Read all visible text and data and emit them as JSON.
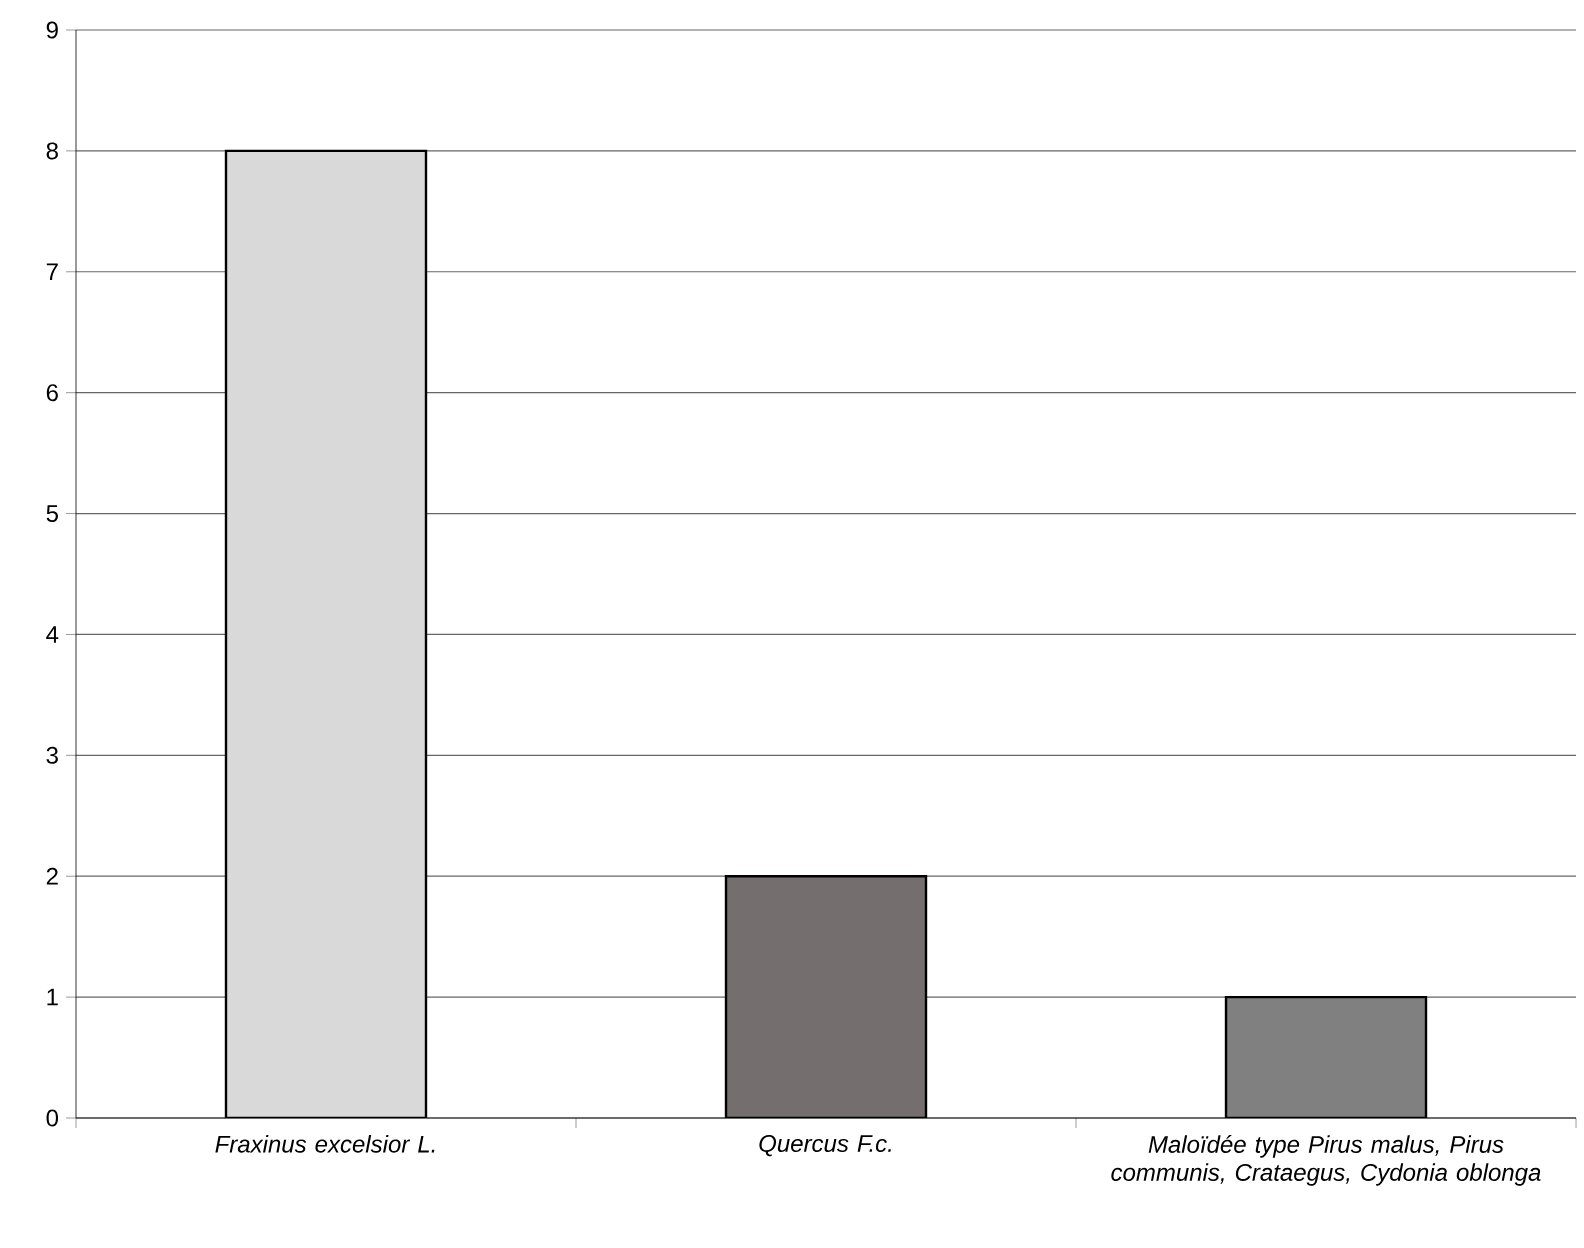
{
  "chart_data": {
    "type": "bar",
    "categories": [
      "Fraxinus excelsior L.",
      "Quercus F.c.",
      "Maloïdée type Pirus malus, Pirus communis, Crataegus, Cydonia oblonga"
    ],
    "values": [
      8,
      2,
      1
    ],
    "colors": [
      "#d9d9d9",
      "#746f6e",
      "#808080"
    ],
    "ylim": [
      0,
      9
    ],
    "yticks": [
      0,
      1,
      2,
      3,
      4,
      5,
      6,
      7,
      8,
      9
    ],
    "grid": "y"
  }
}
